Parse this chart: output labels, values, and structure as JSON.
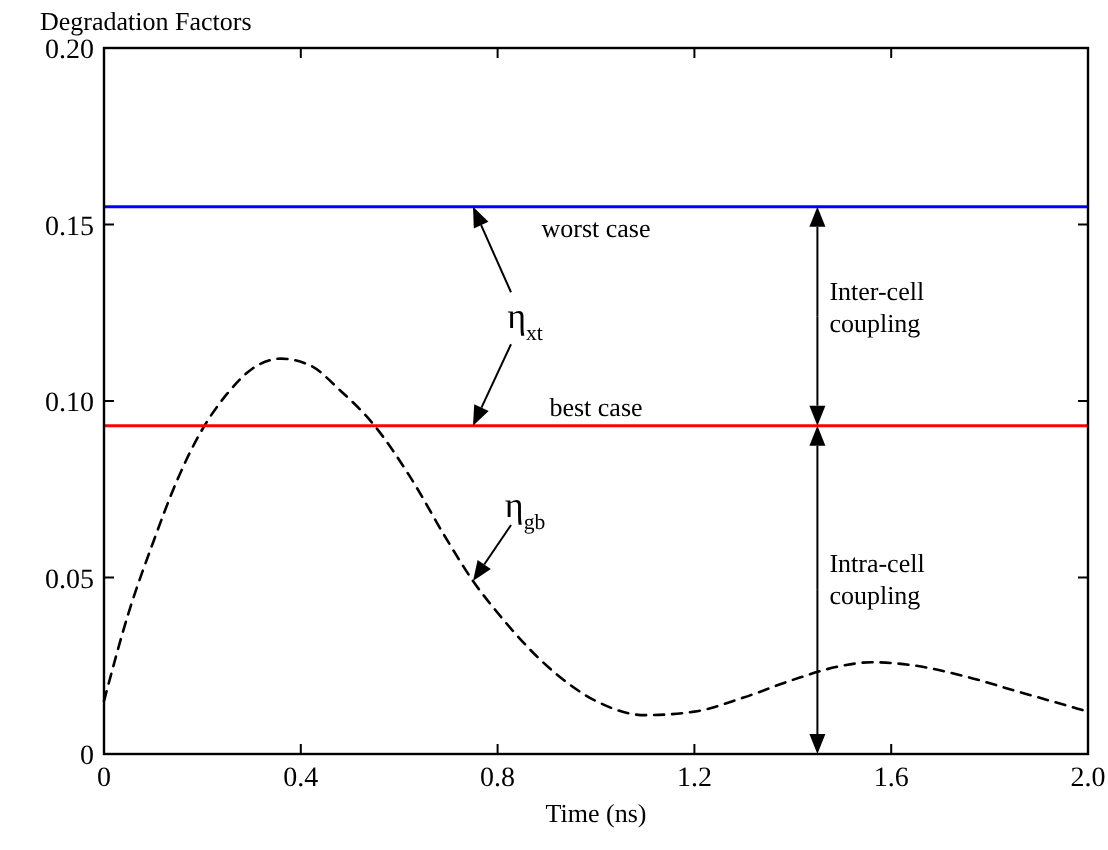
{
  "chart_data": {
    "type": "line",
    "ylabel": "Degradation Factors",
    "xlabel": "Time (ns)",
    "xlim": [
      0,
      2
    ],
    "xticks": [
      0,
      0.4,
      0.8,
      1.2,
      1.6,
      {
        "value": 2,
        "label": "2.0"
      }
    ],
    "ylim": [
      0,
      0.2
    ],
    "yticks": [
      0,
      0.05,
      {
        "value": 0.1,
        "label": "0.10"
      },
      0.15,
      {
        "value": 0.2,
        "label": "0.20"
      }
    ],
    "grid": false,
    "line_style": "dashed",
    "marker": "none",
    "series": [
      {
        "color": "#000000",
        "x": [
          0,
          0.05,
          0.1,
          0.15,
          0.2,
          0.25,
          0.3,
          0.36,
          0.42,
          0.48,
          0.55,
          0.62,
          0.7,
          0.75,
          0.8,
          0.9,
          1.0,
          1.1,
          1.2,
          1.3,
          1.4,
          1.5,
          1.56,
          1.65,
          1.75,
          1.85,
          1.95,
          2.0
        ],
        "values": [
          0.015,
          0.04,
          0.06,
          0.078,
          0.092,
          0.102,
          0.109,
          0.112,
          0.11,
          0.103,
          0.093,
          0.079,
          0.06,
          0.049,
          0.04,
          0.025,
          0.015,
          0.011,
          0.012,
          0.016,
          0.021,
          0.025,
          0.026,
          0.025,
          0.022,
          0.018,
          0.014,
          0.012
        ]
      }
    ],
    "ref_lines": [
      {
        "axis": "y",
        "value": 0.155,
        "label": "worst case",
        "color": "#0000ff"
      },
      {
        "axis": "y",
        "value": 0.093,
        "label": "best case",
        "color": "#ff0000"
      }
    ],
    "annotations": [
      {
        "text": "η$_{xt}$",
        "x": 0.75,
        "y": 0.155
      },
      {
        "text": "η$_{gb}$",
        "x": 0.75,
        "y": 0.049
      },
      "Inter-cell coupling",
      "Intra-cell coupling"
    ]
  }
}
